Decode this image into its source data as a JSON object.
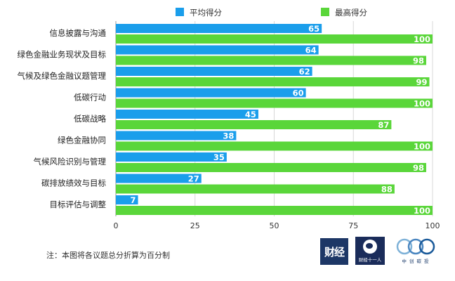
{
  "chart_data": {
    "type": "bar",
    "orientation": "horizontal",
    "categories": [
      "信息披露与沟通",
      "绿色金融业务现状及目标",
      "气候及绿色金融议题管理",
      "低碳行动",
      "低碳战略",
      "绿色金融协同",
      "气候风险识别与管理",
      "碳排放绩效与目标",
      "目标评估与调整"
    ],
    "series": [
      {
        "name": "平均得分",
        "color": "#1a9eeb",
        "values": [
          65,
          64,
          62,
          60,
          45,
          38,
          35,
          27,
          7
        ]
      },
      {
        "name": "最高得分",
        "color": "#5ad63a",
        "values": [
          100,
          98,
          99,
          100,
          87,
          100,
          98,
          88,
          100
        ]
      }
    ],
    "xlim": [
      0,
      100
    ],
    "xticks": [
      0,
      25,
      50,
      75,
      100
    ],
    "legend_position": "top",
    "note": "注：本图将各议题总分折算为百分制"
  },
  "logos": {
    "caijing": "财经",
    "caijing_eleven": "财经十一人",
    "zhongchuang": "中 创 碳 投"
  }
}
